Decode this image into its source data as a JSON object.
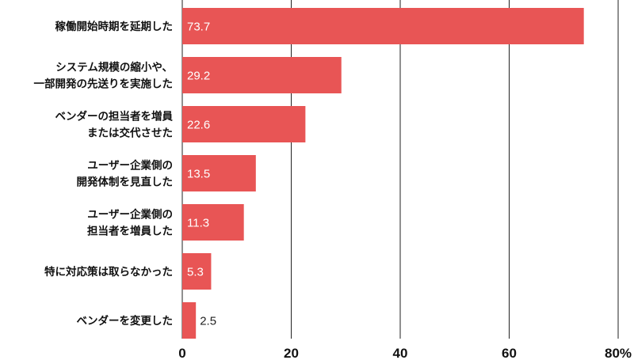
{
  "chart_data": {
    "type": "bar",
    "orientation": "horizontal",
    "categories": [
      [
        "稼働開始時期を延期した"
      ],
      [
        "システム規模の縮小や、",
        "一部開発の先送りを実施した"
      ],
      [
        "ベンダーの担当者を増員",
        "または交代させた"
      ],
      [
        "ユーザー企業側の",
        "開発体制を見直した"
      ],
      [
        "ユーザー企業側の",
        "担当者を増員した"
      ],
      [
        "特に対応策は取らなかった"
      ],
      [
        "ベンダーを変更した"
      ]
    ],
    "values": [
      73.7,
      29.2,
      22.6,
      13.5,
      11.3,
      5.3,
      2.5
    ],
    "value_labels": [
      "73.7",
      "29.2",
      "22.6",
      "13.5",
      "11.3",
      "5.3",
      "2.5"
    ],
    "xlim": [
      0,
      80
    ],
    "xticks": [
      0,
      20,
      40,
      60,
      80
    ],
    "xtick_labels": [
      "0",
      "20",
      "40",
      "60",
      "80%"
    ],
    "grid": true,
    "bar_color": "#e85555",
    "grid_color": "#222222"
  }
}
